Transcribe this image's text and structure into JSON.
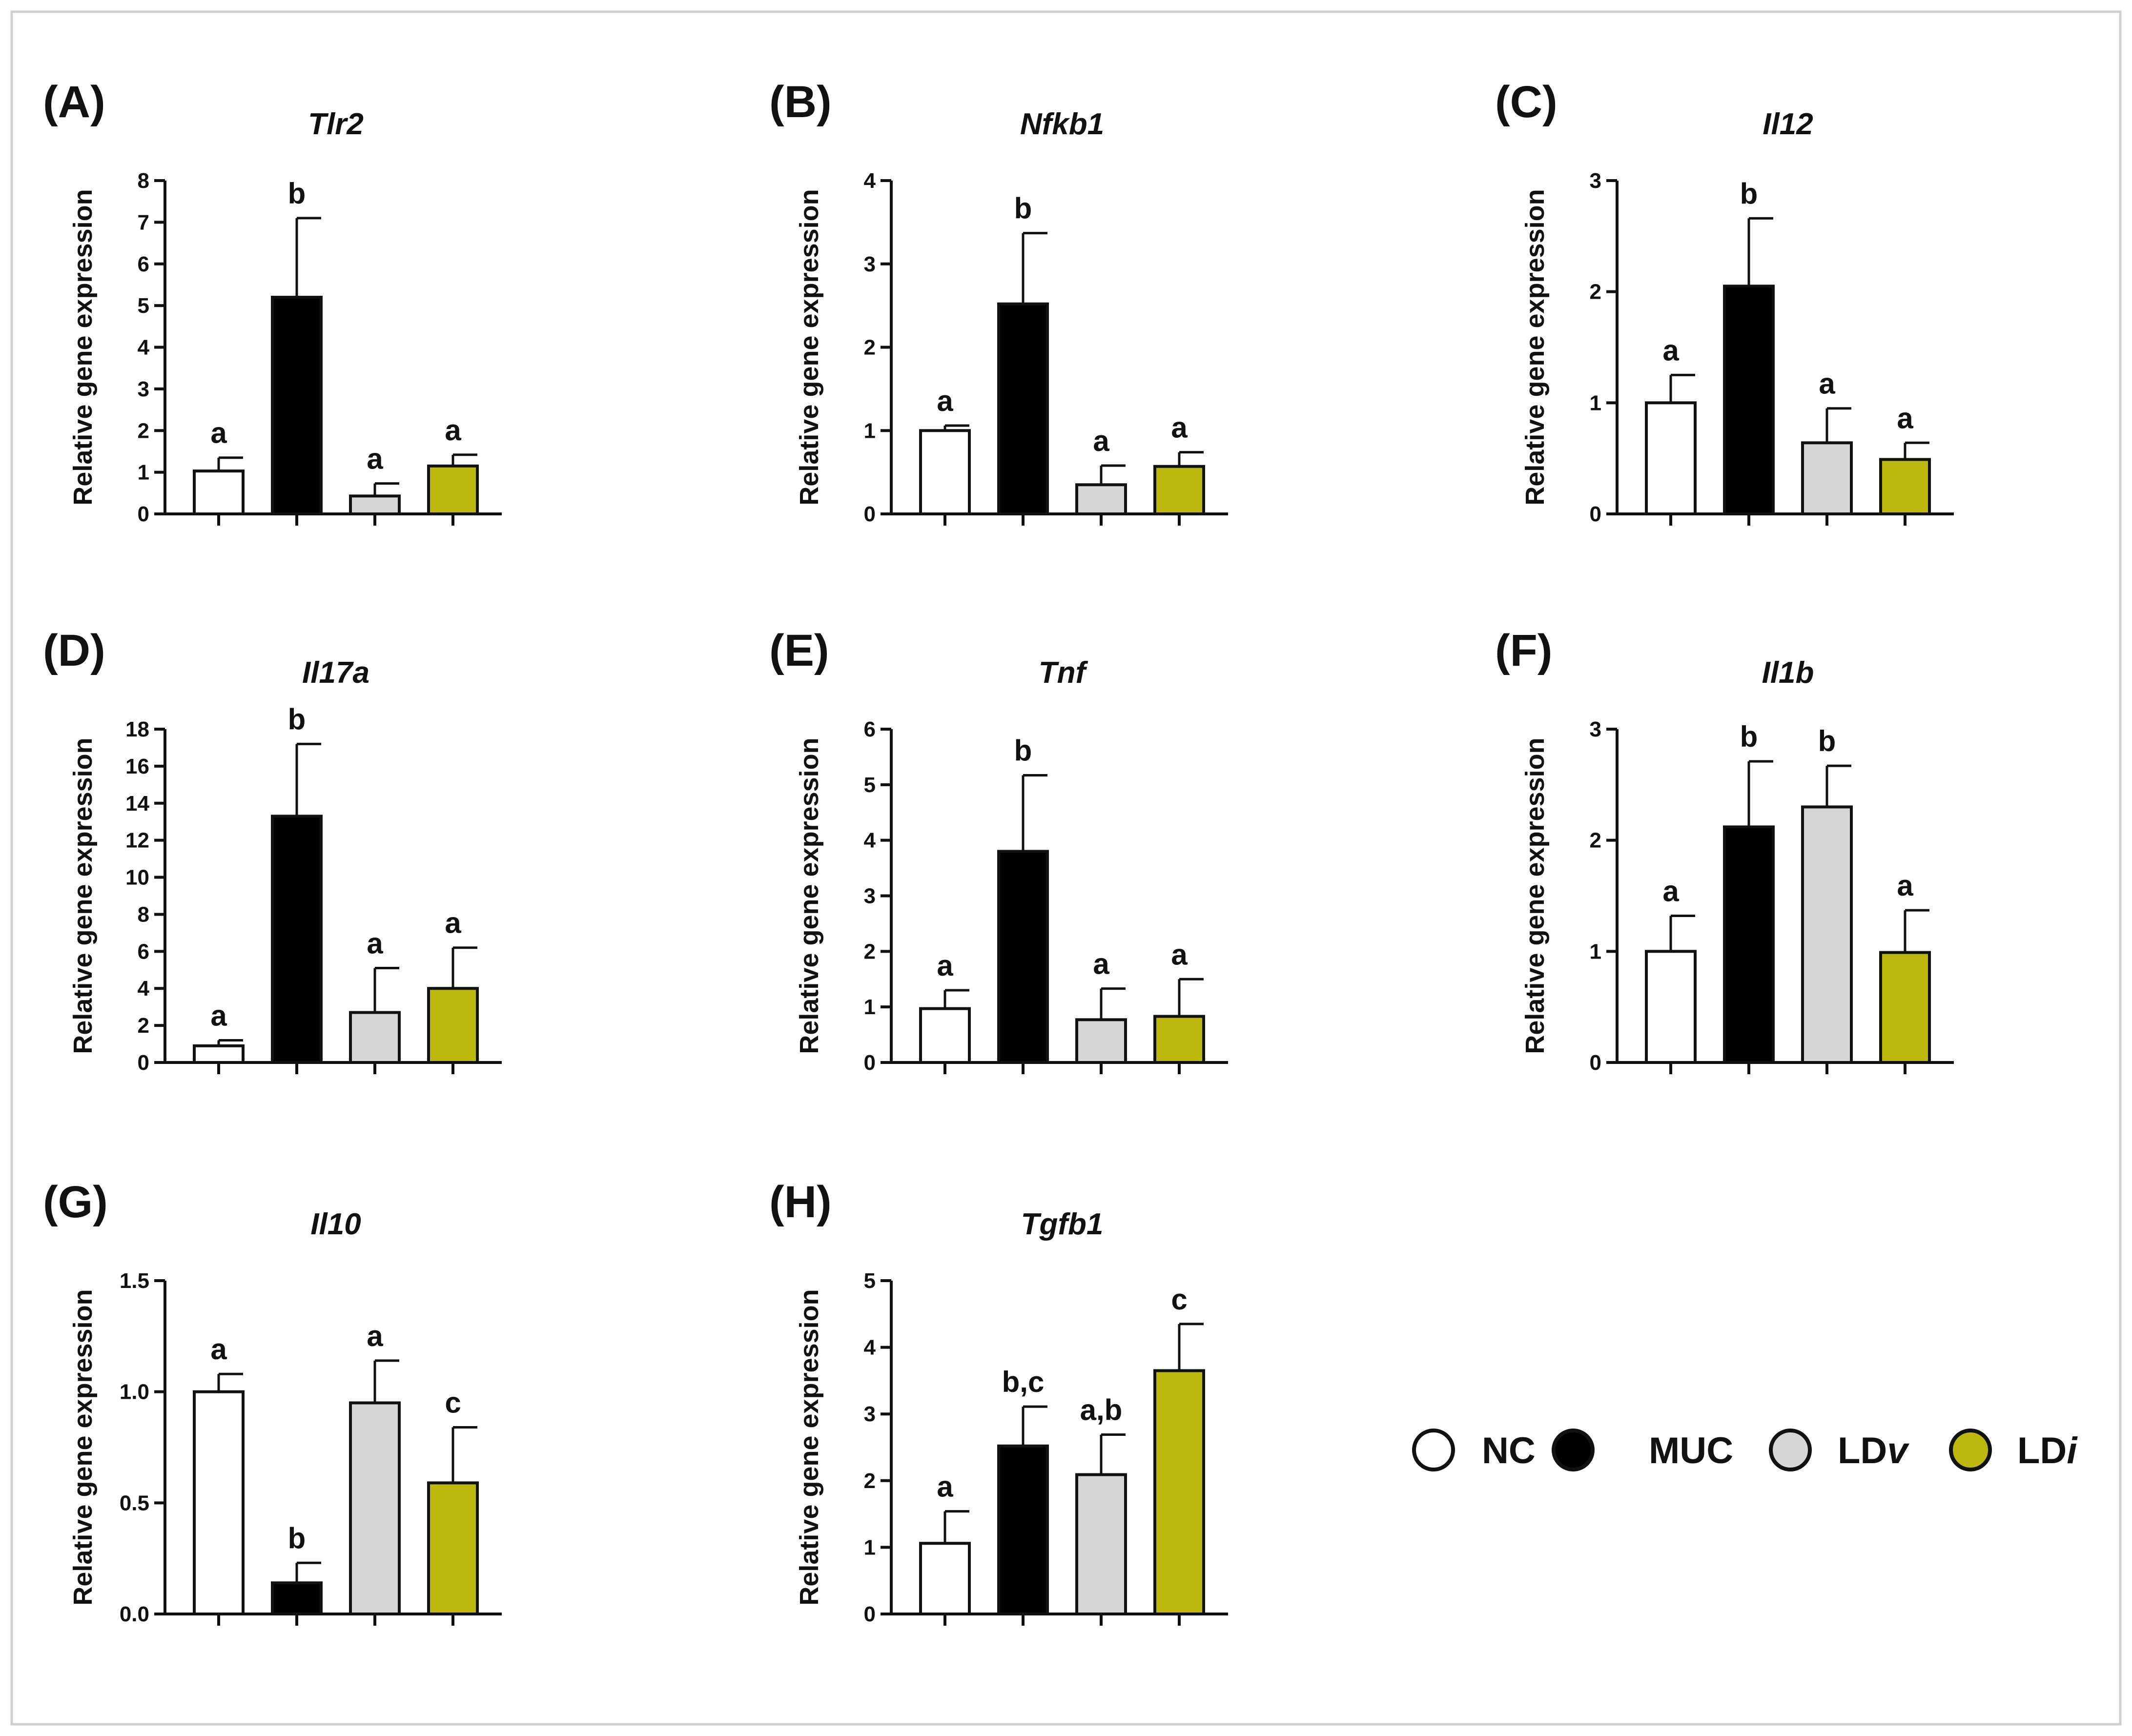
{
  "colors": {
    "NC": "#ffffff",
    "MUC": "#000000",
    "LDv": "#d6d6d6",
    "LDi": "#bcb80f",
    "frame": "#d0d0d0"
  },
  "legend": {
    "items": [
      {
        "group": "NC",
        "prefix": "NC",
        "suffix": ""
      },
      {
        "group": "MUC",
        "prefix": "MUC",
        "suffix": ""
      },
      {
        "group": "LDv",
        "prefix": "LD",
        "suffix": "v"
      },
      {
        "group": "LDi",
        "prefix": "LD",
        "suffix": "i"
      }
    ]
  },
  "chart_data": [
    {
      "panel": "(A)",
      "type": "bar",
      "title": "Tlr2",
      "ylabel": "Relative gene expression",
      "categories": [
        "NC",
        "MUC",
        "LDv",
        "LDi"
      ],
      "values": [
        1.03,
        5.2,
        0.43,
        1.15
      ],
      "errors": [
        0.32,
        1.9,
        0.3,
        0.27
      ],
      "letters": [
        "a",
        "b",
        "a",
        "a"
      ],
      "ylim": [
        0,
        8
      ],
      "yticks": [
        "0",
        "1",
        "2",
        "3",
        "4",
        "5",
        "6",
        "7",
        "8"
      ],
      "ytick_values": [
        0,
        1,
        2,
        3,
        4,
        5,
        6,
        7,
        8
      ]
    },
    {
      "panel": "(B)",
      "type": "bar",
      "title": "Nfkb1",
      "ylabel": "Relative gene expression",
      "categories": [
        "NC",
        "MUC",
        "LDv",
        "LDi"
      ],
      "values": [
        1.0,
        2.52,
        0.35,
        0.57
      ],
      "errors": [
        0.06,
        0.85,
        0.23,
        0.17
      ],
      "letters": [
        "a",
        "b",
        "a",
        "a"
      ],
      "ylim": [
        0,
        4
      ],
      "yticks": [
        "0",
        "1",
        "2",
        "3",
        "4"
      ],
      "ytick_values": [
        0,
        1,
        2,
        3,
        4
      ]
    },
    {
      "panel": "(C)",
      "type": "bar",
      "title": "Il12",
      "ylabel": "Relative gene expression",
      "categories": [
        "NC",
        "MUC",
        "LDv",
        "LDi"
      ],
      "values": [
        1.0,
        2.05,
        0.64,
        0.49
      ],
      "errors": [
        0.25,
        0.61,
        0.31,
        0.15
      ],
      "letters": [
        "a",
        "b",
        "a",
        "a"
      ],
      "ylim": [
        0,
        3
      ],
      "yticks": [
        "0",
        "1",
        "2",
        "3"
      ],
      "ytick_values": [
        0,
        1,
        2,
        3
      ]
    },
    {
      "panel": "(D)",
      "type": "bar",
      "title": "Il17a",
      "ylabel": "Relative gene expression",
      "categories": [
        "NC",
        "MUC",
        "LDv",
        "LDi"
      ],
      "values": [
        0.9,
        13.3,
        2.7,
        4.0
      ],
      "errors": [
        0.3,
        3.9,
        2.4,
        2.2
      ],
      "letters": [
        "a",
        "b",
        "a",
        "a"
      ],
      "ylim": [
        0,
        18
      ],
      "yticks": [
        "0",
        "2",
        "4",
        "6",
        "8",
        "10",
        "12",
        "14",
        "16",
        "18"
      ],
      "ytick_values": [
        0,
        2,
        4,
        6,
        8,
        10,
        12,
        14,
        16,
        18
      ]
    },
    {
      "panel": "(E)",
      "type": "bar",
      "title": "Tnf",
      "ylabel": "Relative gene expression",
      "categories": [
        "NC",
        "MUC",
        "LDv",
        "LDi"
      ],
      "values": [
        0.97,
        3.8,
        0.77,
        0.83
      ],
      "errors": [
        0.33,
        1.37,
        0.56,
        0.67
      ],
      "letters": [
        "a",
        "b",
        "a",
        "a"
      ],
      "ylim": [
        0,
        6
      ],
      "yticks": [
        "0",
        "1",
        "2",
        "3",
        "4",
        "5",
        "6"
      ],
      "ytick_values": [
        0,
        1,
        2,
        3,
        4,
        5,
        6
      ]
    },
    {
      "panel": "(F)",
      "type": "bar",
      "title": "Il1b",
      "ylabel": "Relative gene expression",
      "categories": [
        "NC",
        "MUC",
        "LDv",
        "LDi"
      ],
      "values": [
        1.0,
        2.12,
        2.3,
        0.99
      ],
      "errors": [
        0.32,
        0.59,
        0.37,
        0.38
      ],
      "letters": [
        "a",
        "b",
        "b",
        "a"
      ],
      "ylim": [
        0,
        3
      ],
      "yticks": [
        "0",
        "1",
        "2",
        "3"
      ],
      "ytick_values": [
        0,
        1,
        2,
        3
      ]
    },
    {
      "panel": "(G)",
      "type": "bar",
      "title": "Il10",
      "ylabel": "Relative gene expression",
      "categories": [
        "NC",
        "MUC",
        "LDv",
        "LDi"
      ],
      "values": [
        1.0,
        0.14,
        0.95,
        0.59
      ],
      "errors": [
        0.08,
        0.09,
        0.19,
        0.25
      ],
      "letters": [
        "a",
        "b",
        "a",
        "c"
      ],
      "ylim": [
        0,
        1.5
      ],
      "yticks": [
        "0.0",
        "0.5",
        "1.0",
        "1.5"
      ],
      "ytick_values": [
        0,
        0.5,
        1.0,
        1.5
      ]
    },
    {
      "panel": "(H)",
      "type": "bar",
      "title": "Tgfb1",
      "ylabel": "Relative gene expression",
      "categories": [
        "NC",
        "MUC",
        "LDv",
        "LDi"
      ],
      "values": [
        1.06,
        2.52,
        2.09,
        3.65
      ],
      "errors": [
        0.48,
        0.59,
        0.6,
        0.7
      ],
      "letters": [
        "a",
        "b,c",
        "a,b",
        "c"
      ],
      "ylim": [
        0,
        5
      ],
      "yticks": [
        "0",
        "1",
        "2",
        "3",
        "4",
        "5"
      ],
      "ytick_values": [
        0,
        1,
        2,
        3,
        4,
        5
      ]
    }
  ]
}
